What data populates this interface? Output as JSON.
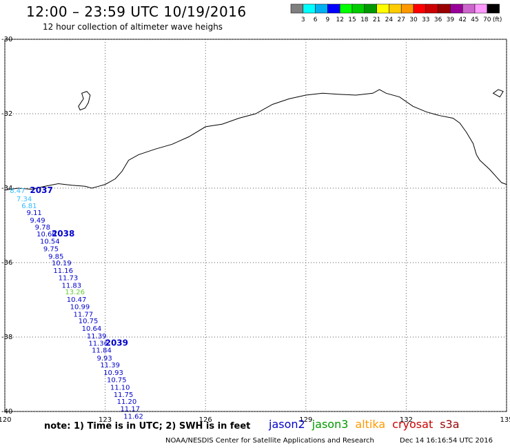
{
  "header": {
    "title": "12:00 – 23:59 UTC 10/19/2016",
    "subtitle": "12 hour collection of altimeter wave heighs"
  },
  "colorbar": {
    "colors": [
      "#7f7f7f",
      "#00ffff",
      "#00b0f0",
      "#0000ff",
      "#00ff00",
      "#00cc00",
      "#009900",
      "#ffff00",
      "#ffcc00",
      "#ff9900",
      "#ff0000",
      "#cc0000",
      "#990000",
      "#990099",
      "#cc66cc",
      "#ff99ff",
      "#000000"
    ],
    "labels": [
      "3",
      "6",
      "9",
      "12",
      "15",
      "18",
      "21",
      "24",
      "27",
      "30",
      "33",
      "36",
      "39",
      "42",
      "45",
      "70"
    ],
    "unit": "(ft)"
  },
  "map": {
    "lon_ticks": [
      "120",
      "123",
      "126",
      "129",
      "132",
      "135"
    ],
    "lat_ticks": [
      "-30",
      "-32",
      "-34",
      "-36",
      "-38",
      "-40"
    ],
    "lon_range": [
      120,
      135
    ],
    "lat_range": [
      -30,
      -40
    ],
    "grid": "dotted",
    "track_color": "#0000cc",
    "track_labels": [
      {
        "value": "8.47",
        "color": "#33bbff",
        "lat": -34.06,
        "lon": 120.15
      },
      {
        "value": "7.34",
        "color": "#33bbff",
        "lat": -34.28,
        "lon": 120.35
      },
      {
        "value": "6.81",
        "color": "#33bbff",
        "lat": -34.46,
        "lon": 120.5
      },
      {
        "value": "9.11",
        "color": "#0000cc",
        "lat": -34.65,
        "lon": 120.65
      },
      {
        "value": "9.49",
        "color": "#0000cc",
        "lat": -34.85,
        "lon": 120.75
      },
      {
        "value": "9.78",
        "color": "#0000cc",
        "lat": -35.04,
        "lon": 120.9
      },
      {
        "value": "10.60",
        "color": "#0000cc",
        "lat": -35.22,
        "lon": 120.95
      },
      {
        "value": "10.54",
        "color": "#0000cc",
        "lat": -35.42,
        "lon": 121.05
      },
      {
        "value": "9.75",
        "color": "#0000cc",
        "lat": -35.62,
        "lon": 121.15
      },
      {
        "value": "9.85",
        "color": "#0000cc",
        "lat": -35.82,
        "lon": 121.3
      },
      {
        "value": "10.19",
        "color": "#0000cc",
        "lat": -36.0,
        "lon": 121.4
      },
      {
        "value": "11.16",
        "color": "#0000cc",
        "lat": -36.2,
        "lon": 121.45
      },
      {
        "value": "11.73",
        "color": "#0000cc",
        "lat": -36.4,
        "lon": 121.6
      },
      {
        "value": "11.83",
        "color": "#0000cc",
        "lat": -36.6,
        "lon": 121.7
      },
      {
        "value": "13.26",
        "color": "#66cc33",
        "lat": -36.78,
        "lon": 121.8
      },
      {
        "value": "10.47",
        "color": "#0000cc",
        "lat": -36.98,
        "lon": 121.85
      },
      {
        "value": "10.99",
        "color": "#0000cc",
        "lat": -37.18,
        "lon": 121.95
      },
      {
        "value": "11.77",
        "color": "#0000cc",
        "lat": -37.38,
        "lon": 122.05
      },
      {
        "value": "10.75",
        "color": "#0000cc",
        "lat": -37.56,
        "lon": 122.2
      },
      {
        "value": "10.64",
        "color": "#0000cc",
        "lat": -37.76,
        "lon": 122.3
      },
      {
        "value": "11.39",
        "color": "#0000cc",
        "lat": -37.96,
        "lon": 122.45
      },
      {
        "value": "11.36",
        "color": "#0000cc",
        "lat": -38.16,
        "lon": 122.5
      },
      {
        "value": "11.84",
        "color": "#0000cc",
        "lat": -38.34,
        "lon": 122.6
      },
      {
        "value": "9.93",
        "color": "#0000cc",
        "lat": -38.56,
        "lon": 122.75
      },
      {
        "value": "11.39",
        "color": "#0000cc",
        "lat": -38.74,
        "lon": 122.85
      },
      {
        "value": "10.93",
        "color": "#0000cc",
        "lat": -38.94,
        "lon": 122.95
      },
      {
        "value": "10.75",
        "color": "#0000cc",
        "lat": -39.14,
        "lon": 123.05
      },
      {
        "value": "11.10",
        "color": "#0000cc",
        "lat": -39.34,
        "lon": 123.15
      },
      {
        "value": "11.75",
        "color": "#0000cc",
        "lat": -39.54,
        "lon": 123.25
      },
      {
        "value": "11.20",
        "color": "#0000cc",
        "lat": -39.72,
        "lon": 123.35
      },
      {
        "value": "11.17",
        "color": "#0000cc",
        "lat": -39.92,
        "lon": 123.45
      },
      {
        "value": "11.62",
        "color": "#0000cc",
        "lat": -40.12,
        "lon": 123.55
      }
    ],
    "time_labels": [
      {
        "value": "2037",
        "lat": -34.06,
        "lon": 120.75
      },
      {
        "value": "2038",
        "lat": -35.22,
        "lon": 121.4
      },
      {
        "value": "2039",
        "lat": -38.16,
        "lon": 123.0
      }
    ],
    "coastline": [
      [
        120,
        -34.05
      ],
      [
        120.4,
        -34.0
      ],
      [
        120.8,
        -34.03
      ],
      [
        121.2,
        -33.95
      ],
      [
        121.6,
        -33.88
      ],
      [
        122.0,
        -33.92
      ],
      [
        122.4,
        -33.95
      ],
      [
        122.6,
        -34.0
      ],
      [
        122.8,
        -33.95
      ],
      [
        123.0,
        -33.9
      ],
      [
        123.3,
        -33.75
      ],
      [
        123.5,
        -33.55
      ],
      [
        123.7,
        -33.25
      ],
      [
        124.0,
        -33.1
      ],
      [
        124.5,
        -32.95
      ],
      [
        125.0,
        -32.82
      ],
      [
        125.5,
        -32.62
      ],
      [
        126.0,
        -32.35
      ],
      [
        126.5,
        -32.28
      ],
      [
        127.0,
        -32.12
      ],
      [
        127.5,
        -32.0
      ],
      [
        128.0,
        -31.75
      ],
      [
        128.5,
        -31.6
      ],
      [
        129.0,
        -31.5
      ],
      [
        129.5,
        -31.45
      ],
      [
        130.0,
        -31.48
      ],
      [
        130.5,
        -31.5
      ],
      [
        131.0,
        -31.45
      ],
      [
        131.2,
        -31.35
      ],
      [
        131.4,
        -31.45
      ],
      [
        131.8,
        -31.55
      ],
      [
        132.2,
        -31.8
      ],
      [
        132.6,
        -31.95
      ],
      [
        133.0,
        -32.05
      ],
      [
        133.4,
        -32.12
      ],
      [
        133.6,
        -32.25
      ],
      [
        133.8,
        -32.5
      ],
      [
        134.0,
        -32.8
      ],
      [
        134.1,
        -33.1
      ],
      [
        134.2,
        -33.25
      ],
      [
        134.5,
        -33.5
      ],
      [
        134.7,
        -33.7
      ],
      [
        134.85,
        -33.85
      ],
      [
        135,
        -33.9
      ]
    ],
    "islands": [
      [
        [
          122.2,
          -31.8
        ],
        [
          122.35,
          -31.6
        ],
        [
          122.3,
          -31.45
        ],
        [
          122.45,
          -31.4
        ],
        [
          122.55,
          -31.5
        ],
        [
          122.5,
          -31.7
        ],
        [
          122.4,
          -31.85
        ],
        [
          122.25,
          -31.9
        ],
        [
          122.2,
          -31.8
        ]
      ],
      [
        [
          134.6,
          -31.45
        ],
        [
          134.75,
          -31.35
        ],
        [
          134.9,
          -31.4
        ],
        [
          134.8,
          -31.55
        ],
        [
          134.6,
          -31.45
        ]
      ]
    ]
  },
  "footer": {
    "note": "note:  1) Time is in UTC;  2) SWH is in feet",
    "satellites": [
      {
        "name": "jason2",
        "color": "#0000cc"
      },
      {
        "name": "jason3",
        "color": "#009900"
      },
      {
        "name": "altika",
        "color": "#ff9900"
      },
      {
        "name": "cryosat",
        "color": "#cc0000"
      },
      {
        "name": "s3a",
        "color": "#990000"
      }
    ],
    "credit": "NOAA/NESDIS Center for Satellite Applications and Research",
    "timestamp": "Dec 14 16:16:54 UTC 2016"
  }
}
